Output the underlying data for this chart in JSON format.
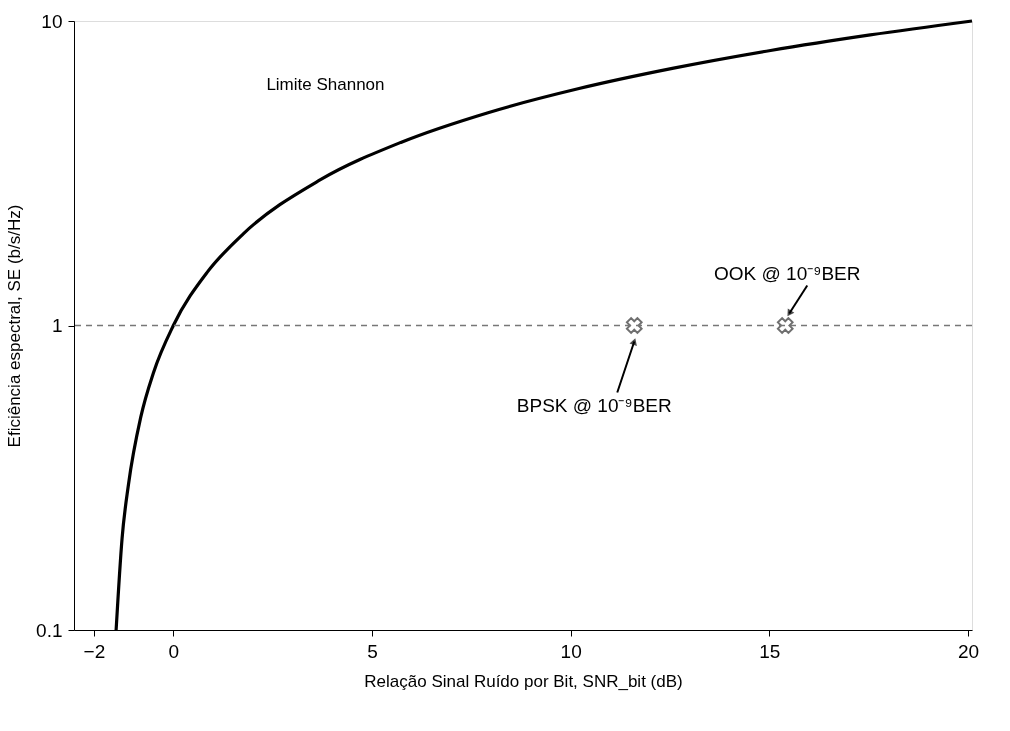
{
  "chart_data": {
    "type": "line",
    "xlabel": "Relação Sinal Ruído por Bit, SNR_bit   (dB)",
    "ylabel": "Eficiência espectral, SE (b/s/Hz)",
    "xlim": [
      -2.5,
      20.1
    ],
    "xticks": [
      -2,
      0,
      5,
      10,
      15,
      20
    ],
    "ylim": [
      0.1,
      10
    ],
    "yticks": [
      0.1,
      1,
      10
    ],
    "log": "y",
    "grid": false,
    "legend": false,
    "series": [
      {
        "color": "#000000",
        "line_style": "solid",
        "x": [
          -1.44,
          -1.29,
          -1.13,
          -0.82,
          -0.5,
          0,
          0.86,
          1.76,
          3.68,
          5.74,
          7.92,
          10.21,
          12.59,
          15.03,
          17.54,
          20.1
        ],
        "values": [
          0.1,
          0.2,
          0.3,
          0.5,
          0.7,
          1,
          1.5,
          2,
          3,
          4,
          5,
          6,
          7,
          8,
          9,
          10
        ]
      },
      {
        "type": "scatter",
        "marker": "cross",
        "color": "#333333",
        "x": [
          11.6,
          15.4
        ],
        "values": [
          1,
          1
        ]
      }
    ],
    "ref_lines": [
      {
        "axis": "y",
        "value": 1,
        "color": "#777777",
        "line_style": "dashed"
      }
    ],
    "annotations": [
      "Limite Shannon",
      {
        "text": "OOK @ 10⁻⁹BER",
        "x": 15.4,
        "y": 1
      },
      "BPSK @ 10⁻⁹BER"
    ]
  }
}
